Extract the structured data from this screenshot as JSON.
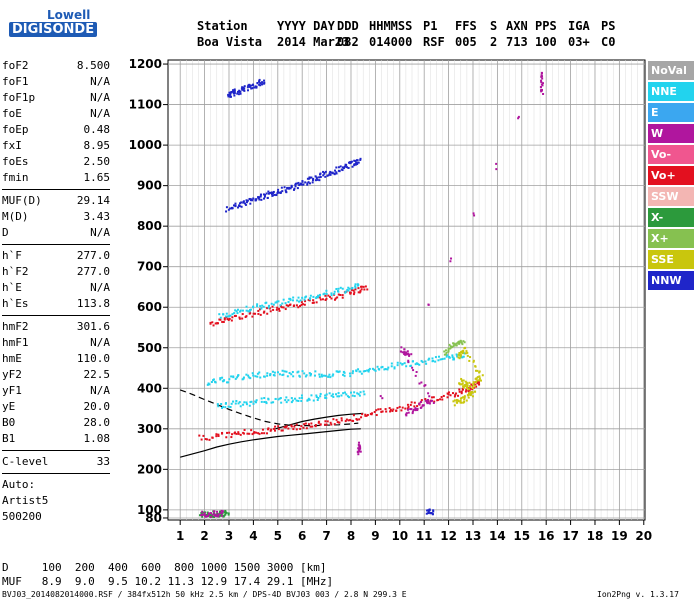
{
  "logo": {
    "line1": "Lowell",
    "line2": "DIGISONDE"
  },
  "header": {
    "columns": [
      {
        "top": "Station",
        "bottom": "Boa Vista"
      },
      {
        "top": "YYYY DAY",
        "bottom": "2014 Mar23"
      },
      {
        "top": "DDD",
        "bottom": "082"
      },
      {
        "top": "HHMMSS",
        "bottom": "014000"
      },
      {
        "top": "P1",
        "bottom": "RSF"
      },
      {
        "top": "FFS",
        "bottom": "005"
      },
      {
        "top": "S",
        "bottom": "2"
      },
      {
        "top": "AXN",
        "bottom": "713"
      },
      {
        "top": "PPS",
        "bottom": "100"
      },
      {
        "top": "IGA",
        "bottom": "03+"
      },
      {
        "top": "PS",
        "bottom": "C0"
      }
    ]
  },
  "params": {
    "group1": [
      {
        "k": "foF2",
        "v": "8.500"
      },
      {
        "k": "foF1",
        "v": "N/A"
      },
      {
        "k": "foF1p",
        "v": "N/A"
      },
      {
        "k": "foE",
        "v": "N/A"
      },
      {
        "k": "foEp",
        "v": "0.48"
      },
      {
        "k": "fxI",
        "v": "8.95"
      },
      {
        "k": "foEs",
        "v": "2.50"
      },
      {
        "k": "fmin",
        "v": "1.65"
      }
    ],
    "group2": [
      {
        "k": "MUF(D)",
        "v": "29.14"
      },
      {
        "k": "M(D)",
        "v": "3.43"
      },
      {
        "k": "D",
        "v": "N/A"
      }
    ],
    "group3": [
      {
        "k": "h`F",
        "v": "277.0"
      },
      {
        "k": "h`F2",
        "v": "277.0"
      },
      {
        "k": "h`E",
        "v": "N/A"
      },
      {
        "k": "h`Es",
        "v": "113.8"
      }
    ],
    "group4": [
      {
        "k": "hmF2",
        "v": "301.6"
      },
      {
        "k": "hmF1",
        "v": "N/A"
      },
      {
        "k": "hmE",
        "v": "110.0"
      },
      {
        "k": "yF2",
        "v": "22.5"
      },
      {
        "k": "yF1",
        "v": "N/A"
      },
      {
        "k": "yE",
        "v": "20.0"
      },
      {
        "k": "B0",
        "v": "28.0"
      },
      {
        "k": "B1",
        "v": "1.08"
      }
    ],
    "group5": [
      {
        "k": "C-level",
        "v": "33"
      }
    ],
    "auto": [
      "Auto:",
      "Artist5",
      "500200"
    ]
  },
  "footer": {
    "d_row": "D     100  200  400  600  800 1000 1500 3000 [km]",
    "muf_row": "MUF   8.9  9.0  9.5 10.2 11.3 12.9 17.4 29.1 [MHz]",
    "file_line": "BVJ03_2014082014000.RSF / 384fx512h 50 kHz 2.5 km / DPS-4D BVJ03 003 / 2.8 N 299.3 E",
    "version": "Ion2Png v. 1.3.17"
  },
  "legend": [
    {
      "label": "NoVal",
      "color": "#a6a6a6"
    },
    {
      "label": "NNE",
      "color": "#22d3ee"
    },
    {
      "label": "E",
      "color": "#3ba7f0"
    },
    {
      "label": "W",
      "color": "#b0169e"
    },
    {
      "label": "Vo-",
      "color": "#f0568f"
    },
    {
      "label": "Vo+",
      "color": "#e3101f"
    },
    {
      "label": "SSW",
      "color": "#f3b6b3"
    },
    {
      "label": "X-",
      "color": "#2c9a3c"
    },
    {
      "label": "X+",
      "color": "#86c150"
    },
    {
      "label": "SSE",
      "color": "#c9c60d"
    },
    {
      "label": "NNW",
      "color": "#1f25c9"
    }
  ],
  "chart_data": {
    "type": "scatter",
    "title": "",
    "xlabel": "",
    "ylabel": "",
    "xlim": [
      0.5,
      20.05
    ],
    "ylim": [
      75,
      1210
    ],
    "x_ticks": [
      1,
      2,
      3,
      4,
      5,
      6,
      7,
      8,
      9,
      10,
      11,
      12,
      13,
      14,
      15,
      16,
      17,
      18,
      19,
      20
    ],
    "y_ticks": [
      80,
      100,
      200,
      300,
      400,
      500,
      600,
      700,
      800,
      900,
      1000,
      1100,
      1200
    ],
    "grid": true,
    "legend_placement": "right",
    "traces": [
      {
        "name": "NNW",
        "color": "#1f25c9",
        "points": [
          [
            2.9,
            845
          ],
          [
            3.5,
            858
          ],
          [
            4.0,
            868
          ],
          [
            4.5,
            878
          ],
          [
            5.0,
            888
          ],
          [
            5.5,
            898
          ],
          [
            6.0,
            908
          ],
          [
            6.5,
            920
          ],
          [
            7.0,
            932
          ],
          [
            7.5,
            944
          ],
          [
            8.0,
            955
          ],
          [
            8.3,
            962
          ]
        ]
      },
      {
        "name": "NNW",
        "color": "#1f25c9",
        "points": [
          [
            2.9,
            1125
          ],
          [
            3.2,
            1132
          ],
          [
            3.6,
            1140
          ],
          [
            4.0,
            1150
          ],
          [
            4.4,
            1160
          ]
        ]
      },
      {
        "name": "Vo+",
        "color": "#e3101f",
        "points": [
          [
            2.2,
            560
          ],
          [
            3.0,
            573
          ],
          [
            4.0,
            587
          ],
          [
            5.0,
            600
          ],
          [
            6.0,
            612
          ],
          [
            7.0,
            625
          ],
          [
            8.0,
            638
          ],
          [
            8.6,
            650
          ]
        ]
      },
      {
        "name": "NNE",
        "color": "#22d3ee",
        "points": [
          [
            2.6,
            582
          ],
          [
            3.5,
            595
          ],
          [
            4.5,
            607
          ],
          [
            5.5,
            618
          ],
          [
            6.5,
            630
          ],
          [
            7.5,
            642
          ],
          [
            8.3,
            655
          ]
        ]
      },
      {
        "name": "NNE",
        "color": "#22d3ee",
        "points": [
          [
            2.1,
            416
          ],
          [
            3.0,
            425
          ],
          [
            4.0,
            434
          ],
          [
            5.0,
            440
          ],
          [
            6.0,
            438
          ],
          [
            7.0,
            436
          ],
          [
            8.0,
            440
          ],
          [
            9.0,
            450
          ],
          [
            10.0,
            460
          ],
          [
            11.0,
            470
          ],
          [
            12.0,
            478
          ],
          [
            12.6,
            485
          ]
        ]
      },
      {
        "name": "NNE",
        "color": "#22d3ee",
        "points": [
          [
            2.5,
            360
          ],
          [
            3.5,
            365
          ],
          [
            4.5,
            372
          ],
          [
            5.5,
            375
          ],
          [
            6.5,
            380
          ],
          [
            7.5,
            385
          ],
          [
            8.5,
            390
          ]
        ]
      },
      {
        "name": "Vo+",
        "color": "#e3101f",
        "points": [
          [
            1.8,
            280
          ],
          [
            3.0,
            288
          ],
          [
            4.0,
            295
          ],
          [
            5.0,
            302
          ],
          [
            6.0,
            310
          ],
          [
            7.0,
            318
          ],
          [
            8.0,
            328
          ],
          [
            9.0,
            342
          ],
          [
            10.0,
            355
          ],
          [
            11.0,
            370
          ],
          [
            12.0,
            385
          ],
          [
            12.8,
            400
          ],
          [
            13.2,
            420
          ]
        ]
      },
      {
        "name": "W",
        "color": "#b0169e",
        "points": [
          [
            10.2,
            340
          ],
          [
            10.8,
            360
          ],
          [
            11.3,
            372
          ],
          [
            10.0,
            500
          ],
          [
            10.4,
            480
          ]
        ]
      },
      {
        "name": "SSE",
        "color": "#c9c60d",
        "points": [
          [
            12.2,
            365
          ],
          [
            12.6,
            375
          ],
          [
            13.0,
            390
          ],
          [
            12.4,
            420
          ],
          [
            12.9,
            410
          ],
          [
            13.3,
            430
          ],
          [
            12.6,
            500
          ],
          [
            12.4,
            480
          ]
        ]
      },
      {
        "name": "X+",
        "color": "#86c150",
        "points": [
          [
            11.8,
            490
          ],
          [
            12.2,
            510
          ],
          [
            12.6,
            520
          ]
        ]
      },
      {
        "name": "X-",
        "color": "#2c9a3c",
        "points": [
          [
            1.8,
            91
          ],
          [
            2.2,
            92
          ],
          [
            2.6,
            93
          ],
          [
            2.9,
            94
          ]
        ]
      },
      {
        "name": "W",
        "color": "#b0169e",
        "points": [
          [
            1.8,
            92
          ],
          [
            2.3,
            92
          ],
          [
            2.7,
            93
          ]
        ]
      },
      {
        "name": "W",
        "color": "#b0169e",
        "points": [
          [
            8.3,
            242
          ],
          [
            8.3,
            262
          ],
          [
            15.8,
            1180
          ],
          [
            15.8,
            1130
          ]
        ]
      },
      {
        "name": "NNW",
        "color": "#1f25c9",
        "points": [
          [
            11.1,
            100
          ],
          [
            11.3,
            95
          ]
        ]
      }
    ],
    "curves": [
      {
        "style": "dashed",
        "points": [
          [
            1.0,
            396
          ],
          [
            1.5,
            385
          ],
          [
            2.0,
            372
          ],
          [
            2.5,
            360
          ],
          [
            3.0,
            348
          ],
          [
            3.5,
            337
          ],
          [
            4.0,
            327
          ],
          [
            4.5,
            318
          ],
          [
            5.0,
            312
          ],
          [
            5.5,
            309
          ],
          [
            6.0,
            308
          ],
          [
            6.5,
            308
          ],
          [
            7.0,
            309
          ],
          [
            7.5,
            310
          ],
          [
            8.0,
            312
          ],
          [
            8.3,
            314
          ]
        ]
      },
      {
        "style": "solid",
        "points": [
          [
            1.0,
            230
          ],
          [
            1.5,
            238
          ],
          [
            2.0,
            246
          ],
          [
            2.5,
            255
          ],
          [
            3.0,
            262
          ],
          [
            3.5,
            268
          ],
          [
            4.0,
            273
          ],
          [
            4.5,
            277
          ],
          [
            5.0,
            281
          ],
          [
            5.5,
            284
          ],
          [
            6.0,
            287
          ],
          [
            6.5,
            290
          ],
          [
            7.0,
            293
          ],
          [
            7.5,
            296
          ],
          [
            8.0,
            299
          ],
          [
            8.4,
            300
          ]
        ]
      },
      {
        "style": "solid",
        "points": [
          [
            4.9,
            300
          ],
          [
            5.5,
            310
          ],
          [
            6.0,
            318
          ],
          [
            6.5,
            324
          ],
          [
            7.0,
            329
          ],
          [
            7.5,
            333
          ],
          [
            8.0,
            336
          ],
          [
            8.5,
            338
          ]
        ]
      }
    ]
  }
}
